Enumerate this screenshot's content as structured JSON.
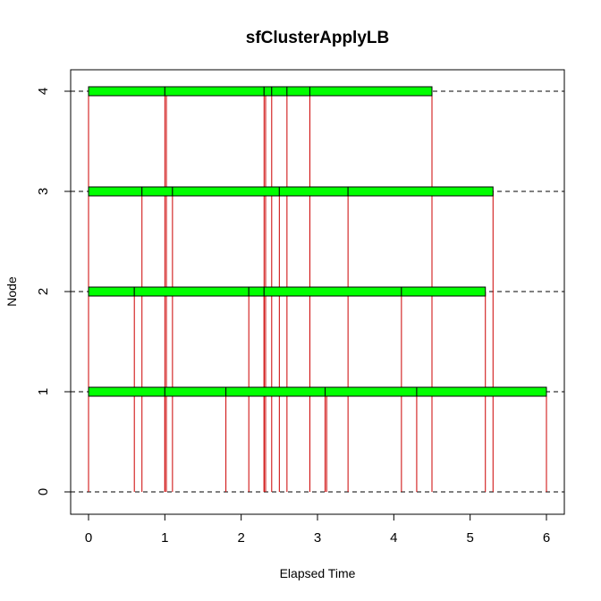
{
  "chart_data": {
    "type": "gantt",
    "title": "sfClusterApplyLB",
    "xlabel": "Elapsed Time",
    "ylabel": "Node",
    "xlim": [
      0,
      6
    ],
    "ylim": [
      0,
      4
    ],
    "x_ticks": [
      0,
      1,
      2,
      3,
      4,
      5,
      6
    ],
    "y_ticks": [
      0,
      1,
      2,
      3,
      4
    ],
    "grid": "dashed horizontal lines at each node",
    "bar_color": "#00ff00",
    "bar_border_color": "#000000",
    "message_line_color": "#cc0000",
    "nodes": [
      {
        "node": 1,
        "tasks": [
          [
            0.0,
            1.0
          ],
          [
            1.0,
            1.8
          ],
          [
            1.8,
            3.1
          ],
          [
            3.1,
            4.3
          ],
          [
            4.3,
            6.0
          ]
        ],
        "messages": [
          [
            0.0,
            0.0
          ],
          [
            1.0,
            1.0
          ],
          [
            1.8,
            1.8
          ],
          [
            3.1,
            3.1
          ],
          [
            3.12,
            3.12
          ],
          [
            4.3,
            4.3
          ],
          [
            6.0,
            6.0
          ]
        ]
      },
      {
        "node": 2,
        "tasks": [
          [
            0.0,
            0.6
          ],
          [
            0.6,
            2.1
          ],
          [
            2.1,
            2.3
          ],
          [
            2.3,
            4.1
          ],
          [
            4.1,
            5.2
          ]
        ],
        "messages": [
          [
            0.0,
            0.0
          ],
          [
            0.6,
            0.6
          ],
          [
            2.1,
            2.1
          ],
          [
            2.3,
            2.3
          ],
          [
            4.1,
            4.1
          ],
          [
            5.2,
            5.2
          ]
        ]
      },
      {
        "node": 3,
        "tasks": [
          [
            0.0,
            0.7
          ],
          [
            0.7,
            1.1
          ],
          [
            1.1,
            2.5
          ],
          [
            2.5,
            3.4
          ],
          [
            3.4,
            5.3
          ]
        ],
        "messages": [
          [
            0.0,
            0.0
          ],
          [
            0.7,
            0.7
          ],
          [
            1.1,
            1.1
          ],
          [
            2.5,
            2.5
          ],
          [
            3.4,
            3.4
          ],
          [
            5.3,
            5.3
          ]
        ]
      },
      {
        "node": 4,
        "tasks": [
          [
            0.0,
            1.0
          ],
          [
            1.0,
            2.3
          ],
          [
            2.3,
            2.4
          ],
          [
            2.4,
            2.6
          ],
          [
            2.6,
            2.9
          ],
          [
            2.9,
            4.5
          ]
        ],
        "messages": [
          [
            0.0,
            0.0
          ],
          [
            1.0,
            1.0
          ],
          [
            1.02,
            1.02
          ],
          [
            2.3,
            2.3
          ],
          [
            2.32,
            2.32
          ],
          [
            2.4,
            2.4
          ],
          [
            2.6,
            2.6
          ],
          [
            2.9,
            2.9
          ],
          [
            4.5,
            4.5
          ]
        ]
      }
    ]
  }
}
